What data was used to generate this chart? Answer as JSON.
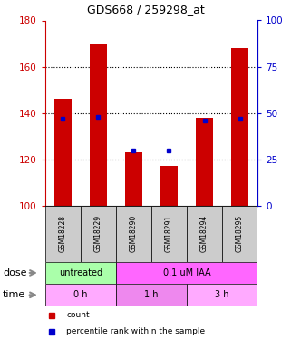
{
  "title": "GDS668 / 259298_at",
  "samples": [
    "GSM18228",
    "GSM18229",
    "GSM18290",
    "GSM18291",
    "GSM18294",
    "GSM18295"
  ],
  "count_values": [
    146,
    170,
    123,
    117,
    138,
    168
  ],
  "percentile_values": [
    47,
    48,
    30,
    30,
    46,
    47
  ],
  "ylim_left": [
    100,
    180
  ],
  "ylim_right": [
    0,
    100
  ],
  "yticks_left": [
    100,
    120,
    140,
    160,
    180
  ],
  "yticks_right": [
    0,
    25,
    50,
    75,
    100
  ],
  "bar_color": "#cc0000",
  "dot_color": "#0000cc",
  "bar_width": 0.5,
  "dose_labels": [
    {
      "label": "untreated",
      "start": 0,
      "end": 2,
      "color": "#aaffaa"
    },
    {
      "label": "0.1 uM IAA",
      "start": 2,
      "end": 6,
      "color": "#ff66ff"
    }
  ],
  "time_labels": [
    {
      "label": "0 h",
      "start": 0,
      "end": 2,
      "color": "#ffaaff"
    },
    {
      "label": "1 h",
      "start": 2,
      "end": 4,
      "color": "#ee88ee"
    },
    {
      "label": "3 h",
      "start": 4,
      "end": 6,
      "color": "#ffaaff"
    }
  ],
  "grid_color": "black",
  "left_axis_color": "#cc0000",
  "right_axis_color": "#0000cc",
  "legend_items": [
    {
      "label": "count",
      "color": "#cc0000"
    },
    {
      "label": "percentile rank within the sample",
      "color": "#0000cc"
    }
  ],
  "sample_bg_color": "#cccccc",
  "dose_arrow_label": "dose",
  "time_arrow_label": "time",
  "fig_width": 3.21,
  "fig_height": 3.75,
  "dpi": 100
}
